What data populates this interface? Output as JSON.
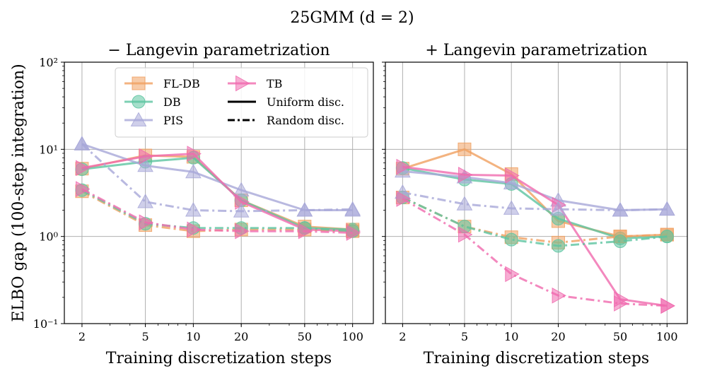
{
  "figure": {
    "title": "25GMM (d = 2)",
    "ylabel": "ELBO gap (100-step integration)"
  },
  "legend": {
    "entries": [
      {
        "label": "FL-DB",
        "color": "#f0a060",
        "marker": "square"
      },
      {
        "label": "DB",
        "color": "#5cc4a0",
        "marker": "circle"
      },
      {
        "label": "PIS",
        "color": "#a8a8d8",
        "marker": "triangle-up"
      },
      {
        "label": "TB",
        "color": "#f06aae",
        "marker": "triangle-right"
      }
    ],
    "styles": [
      {
        "label": "Uniform disc.",
        "dash": "solid"
      },
      {
        "label": "Random disc.",
        "dash": "dashdot"
      }
    ],
    "placement": "top-left of left panel"
  },
  "chart_data": [
    {
      "type": "line",
      "title": "− Langevin parametrization",
      "xlabel": "Training discretization steps",
      "ylabel": "ELBO gap (100-step integration)",
      "xscale": "log",
      "yscale": "log",
      "x": [
        2,
        5,
        10,
        20,
        50,
        100
      ],
      "xticklabels": [
        "2",
        "5",
        "10",
        "20",
        "50",
        "100"
      ],
      "ylim": [
        0.1,
        100
      ],
      "yticklabels": [
        "10⁻¹",
        "10⁰",
        "10¹",
        "10²"
      ],
      "grid": true,
      "series": [
        {
          "name": "FL-DB",
          "dash": "solid",
          "color": "#f0a060",
          "marker": "square",
          "values": [
            6.0,
            8.5,
            8.2,
            2.6,
            1.3,
            1.2
          ]
        },
        {
          "name": "DB",
          "dash": "solid",
          "color": "#5cc4a0",
          "marker": "circle",
          "values": [
            5.9,
            7.2,
            8.0,
            2.6,
            1.25,
            1.2
          ]
        },
        {
          "name": "PIS",
          "dash": "solid",
          "color": "#a8a8d8",
          "marker": "triangle-up",
          "values": [
            11.5,
            6.5,
            5.5,
            3.4,
            2.0,
            2.0
          ]
        },
        {
          "name": "TB",
          "dash": "solid",
          "color": "#f06aae",
          "marker": "triangle-right",
          "values": [
            6.1,
            8.3,
            8.9,
            2.5,
            1.2,
            1.15
          ]
        },
        {
          "name": "FL-DB",
          "dash": "dashdot",
          "color": "#f0a060",
          "marker": "square",
          "values": [
            3.3,
            1.35,
            1.15,
            1.2,
            1.2,
            1.15
          ]
        },
        {
          "name": "DB",
          "dash": "dashdot",
          "color": "#5cc4a0",
          "marker": "circle",
          "values": [
            3.4,
            1.4,
            1.25,
            1.25,
            1.25,
            1.15
          ]
        },
        {
          "name": "PIS",
          "dash": "dashdot",
          "color": "#a8a8d8",
          "marker": "triangle-up",
          "values": [
            11.5,
            2.5,
            2.0,
            1.95,
            2.0,
            2.05
          ]
        },
        {
          "name": "TB",
          "dash": "dashdot",
          "color": "#f06aae",
          "marker": "triangle-right",
          "values": [
            3.5,
            1.45,
            1.2,
            1.15,
            1.15,
            1.1
          ]
        }
      ]
    },
    {
      "type": "line",
      "title": "+ Langevin parametrization",
      "xlabel": "Training discretization steps",
      "ylabel": "",
      "xscale": "log",
      "yscale": "log",
      "x": [
        2,
        5,
        10,
        20,
        50,
        100
      ],
      "xticklabels": [
        "2",
        "5",
        "10",
        "20",
        "50",
        "100"
      ],
      "ylim": [
        0.1,
        100
      ],
      "grid": true,
      "series": [
        {
          "name": "FL-DB",
          "dash": "solid",
          "color": "#f0a060",
          "marker": "square",
          "values": [
            6.0,
            10.0,
            5.2,
            1.5,
            1.0,
            1.05
          ]
        },
        {
          "name": "DB",
          "dash": "solid",
          "color": "#5cc4a0",
          "marker": "circle",
          "values": [
            6.1,
            4.5,
            4.0,
            1.6,
            0.95,
            1.0
          ]
        },
        {
          "name": "PIS",
          "dash": "solid",
          "color": "#a8a8d8",
          "marker": "triangle-up",
          "values": [
            5.6,
            4.8,
            4.1,
            2.6,
            2.0,
            2.05
          ]
        },
        {
          "name": "TB",
          "dash": "solid",
          "color": "#f06aae",
          "marker": "triangle-right",
          "values": [
            6.3,
            5.1,
            5.0,
            2.3,
            0.19,
            0.16
          ]
        },
        {
          "name": "FL-DB",
          "dash": "dashdot",
          "color": "#f0a060",
          "marker": "square",
          "values": [
            2.8,
            1.3,
            0.98,
            0.85,
            1.0,
            1.05
          ]
        },
        {
          "name": "DB",
          "dash": "dashdot",
          "color": "#5cc4a0",
          "marker": "circle",
          "values": [
            2.8,
            1.3,
            0.92,
            0.78,
            0.88,
            1.0
          ]
        },
        {
          "name": "PIS",
          "dash": "dashdot",
          "color": "#a8a8d8",
          "marker": "triangle-up",
          "values": [
            3.2,
            2.35,
            2.1,
            2.05,
            2.0,
            2.05
          ]
        },
        {
          "name": "TB",
          "dash": "dashdot",
          "color": "#f06aae",
          "marker": "triangle-right",
          "values": [
            2.7,
            1.05,
            0.37,
            0.21,
            0.17,
            0.16
          ]
        }
      ]
    }
  ]
}
